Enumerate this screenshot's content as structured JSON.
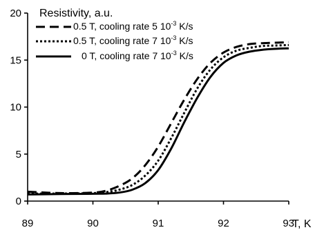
{
  "chart_data": {
    "type": "line",
    "title": "",
    "ylabel": "Resistivity, a.u.",
    "xlabel": "T, K",
    "xlim": [
      89,
      93
    ],
    "ylim": [
      0,
      20
    ],
    "x_ticks": [
      89,
      90,
      91,
      92,
      93
    ],
    "y_ticks": [
      0,
      5,
      10,
      15,
      20
    ],
    "grid": false,
    "legend_position": "top-left",
    "legend_prefix": "10",
    "legend_exponent": "-3",
    "legend_suffix": "K/s",
    "series": [
      {
        "name": "0.5 T, cooling rate 5 10-3 K/s",
        "legend_before": "0.5 T, cooling rate 5",
        "dash": "dashed",
        "x": [
          89.0,
          89.5,
          90.0,
          90.2,
          90.4,
          90.6,
          90.8,
          91.0,
          91.2,
          91.4,
          91.6,
          91.8,
          92.0,
          92.2,
          92.4,
          92.6,
          92.8,
          93.0
        ],
        "y": [
          1.0,
          0.85,
          0.9,
          1.1,
          1.6,
          2.4,
          3.8,
          5.8,
          8.3,
          10.8,
          13.0,
          14.7,
          15.8,
          16.4,
          16.7,
          16.8,
          16.85,
          16.9
        ]
      },
      {
        "name": "0.5 T, cooling rate 7 10-3 K/s",
        "legend_before": "0.5 T, cooling rate 7",
        "dash": "dotted",
        "x": [
          89.0,
          89.5,
          90.0,
          90.2,
          90.4,
          90.6,
          90.8,
          91.0,
          91.2,
          91.4,
          91.6,
          91.8,
          92.0,
          92.2,
          92.4,
          92.6,
          92.8,
          93.0
        ],
        "y": [
          0.8,
          0.8,
          0.85,
          0.95,
          1.2,
          1.7,
          2.7,
          4.3,
          6.7,
          9.4,
          12.0,
          14.0,
          15.3,
          16.0,
          16.3,
          16.5,
          16.55,
          16.6
        ]
      },
      {
        "name": "0 T, cooling rate 7 10-3 K/s",
        "legend_before": "0 T, cooling rate 7",
        "dash": "solid",
        "x": [
          89.0,
          89.5,
          90.0,
          90.2,
          90.4,
          90.6,
          90.8,
          91.0,
          91.2,
          91.4,
          91.6,
          91.8,
          92.0,
          92.2,
          92.4,
          92.6,
          92.8,
          93.0
        ],
        "y": [
          0.7,
          0.75,
          0.78,
          0.8,
          0.9,
          1.2,
          1.9,
          3.3,
          5.6,
          8.4,
          11.0,
          13.2,
          14.7,
          15.5,
          15.9,
          16.1,
          16.2,
          16.25
        ]
      }
    ]
  }
}
